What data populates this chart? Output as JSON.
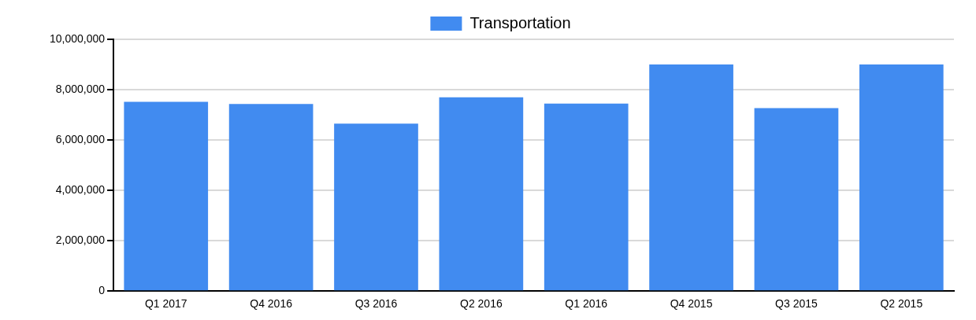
{
  "chart_data": {
    "type": "bar",
    "categories": [
      "Q1 2017",
      "Q4 2016",
      "Q3 2016",
      "Q2 2016",
      "Q1 2016",
      "Q4 2015",
      "Q3 2015",
      "Q2 2015"
    ],
    "series": [
      {
        "name": "Transportation",
        "color": "#418bf0",
        "values": [
          7520000,
          7430000,
          6650000,
          7700000,
          7450000,
          9000000,
          7270000,
          9000000
        ]
      }
    ],
    "ylim": [
      0,
      10000000
    ],
    "yticks": [
      0,
      {
        "value": 2000000,
        "label": "2,000,000"
      },
      {
        "value": 4000000,
        "label": "4,000,000"
      },
      {
        "value": 6000000,
        "label": "6,000,000"
      },
      {
        "value": 8000000,
        "label": "8,000,000"
      },
      {
        "value": 10000000,
        "label": "10,000,000"
      }
    ],
    "grid": "y",
    "legend": "top"
  }
}
